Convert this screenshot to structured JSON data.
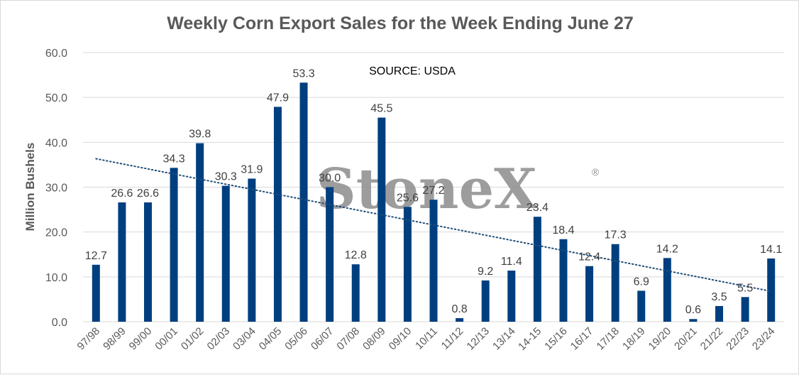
{
  "chart_data": {
    "type": "bar",
    "title": "Weekly Corn Export Sales for the Week Ending June 27",
    "ylabel": "Million Bushels",
    "xlabel": "",
    "annotation": "SOURCE: USDA",
    "watermark": "StoneX",
    "watermark_mark": "®",
    "ylim": [
      0,
      60
    ],
    "yticks": [
      "0.0",
      "10.0",
      "20.0",
      "30.0",
      "40.0",
      "50.0",
      "60.0"
    ],
    "grid": true,
    "legend": "none",
    "trendline": "linear",
    "bar_color": "#003f7f",
    "trend_color": "#1f4e79",
    "grid_color": "#d9d9d9",
    "categories": [
      "97/98",
      "98/99",
      "99/00",
      "00/01",
      "01/02",
      "02/03",
      "03/04",
      "04/05",
      "05/06",
      "06/07",
      "07/08",
      "08/09",
      "09/10",
      "10/11",
      "11/12",
      "12/13",
      "13/14",
      "14-15",
      "15/16",
      "16/17",
      "17/18",
      "18/19",
      "19/20",
      "20/21",
      "21/22",
      "22/23",
      "23/24"
    ],
    "values": [
      12.7,
      26.6,
      26.6,
      34.3,
      39.8,
      30.3,
      31.9,
      47.9,
      53.3,
      30.0,
      12.8,
      45.5,
      25.6,
      27.2,
      0.8,
      9.2,
      11.4,
      23.4,
      18.4,
      12.4,
      17.3,
      6.9,
      14.2,
      0.6,
      3.5,
      5.5,
      14.1
    ],
    "data_labels": [
      "12.7",
      "26.6",
      "26.6",
      "34.3",
      "39.8",
      "30.3",
      "31.9",
      "47.9",
      "53.3",
      "30.0",
      "12.8",
      "45.5",
      "25.6",
      "27.2",
      "0.8",
      "9.2",
      "11.4",
      "23.4",
      "18.4",
      "12.4",
      "17.3",
      "6.9",
      "14.2",
      "0.6",
      "3.5",
      "5.5",
      "14.1"
    ]
  }
}
